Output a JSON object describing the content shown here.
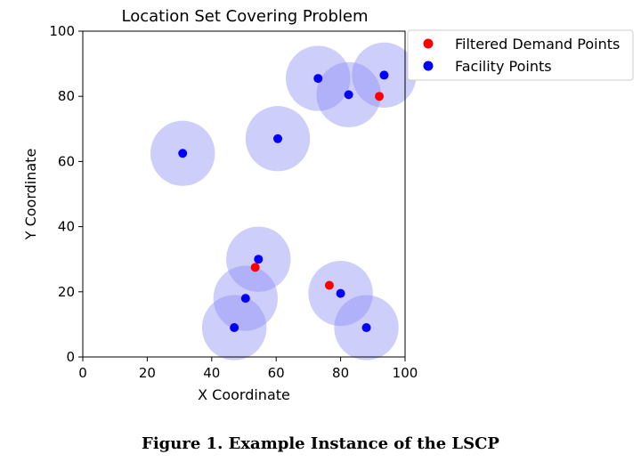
{
  "chart_data": {
    "type": "scatter",
    "title": "Location Set Covering Problem",
    "xlabel": "X Coordinate",
    "ylabel": "Y Coordinate",
    "xlim": [
      0,
      100
    ],
    "ylim": [
      0,
      100
    ],
    "xticks": [
      0,
      20,
      40,
      60,
      80,
      100
    ],
    "yticks": [
      0,
      20,
      40,
      60,
      80,
      100
    ],
    "grid": false,
    "legend_position": "outside-top-right",
    "coverage_radius": 10,
    "coverage_color": "#8a8af5",
    "series": [
      {
        "name": "Filtered Demand Points",
        "color": "#ff0000",
        "points": [
          {
            "x": 92,
            "y": 80
          },
          {
            "x": 53.5,
            "y": 27.5
          },
          {
            "x": 76.5,
            "y": 22
          }
        ]
      },
      {
        "name": "Facility Points",
        "color": "#0000ff",
        "points": [
          {
            "x": 73,
            "y": 85.5
          },
          {
            "x": 82.5,
            "y": 80.5
          },
          {
            "x": 93.5,
            "y": 86.5
          },
          {
            "x": 60.5,
            "y": 67
          },
          {
            "x": 31,
            "y": 62.5
          },
          {
            "x": 54.5,
            "y": 30
          },
          {
            "x": 50.5,
            "y": 18
          },
          {
            "x": 47,
            "y": 9
          },
          {
            "x": 80,
            "y": 19.5
          },
          {
            "x": 88,
            "y": 9
          }
        ]
      }
    ]
  },
  "caption": "Figure 1. Example Instance of the LSCP"
}
